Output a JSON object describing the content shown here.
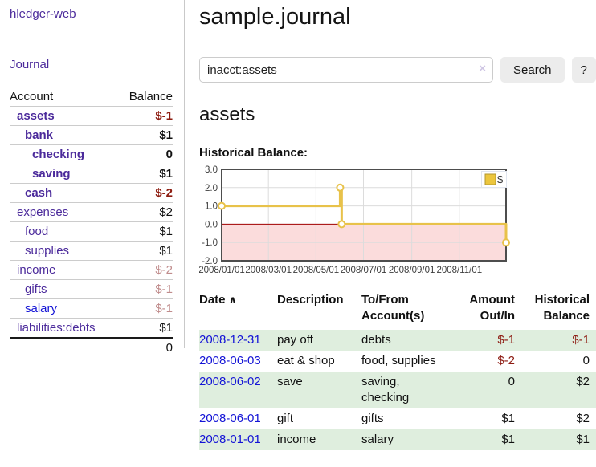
{
  "colors": {
    "link_purple": "#4b2a9b",
    "link_blue": "#1414d6",
    "negative_strong": "#8d1c10",
    "negative_soft": "#c08c8c",
    "row_stripe_green": "#dfeede",
    "button_gray": "#ececec"
  },
  "sidebar": {
    "app_title": "hledger-web",
    "journal_link": "Journal",
    "accounts": {
      "header_account": "Account",
      "header_balance": "Balance",
      "rows": [
        {
          "name": "assets",
          "balance": "$-1"
        },
        {
          "name": "bank",
          "balance": "$1"
        },
        {
          "name": "checking",
          "balance": "0"
        },
        {
          "name": "saving",
          "balance": "$1"
        },
        {
          "name": "cash",
          "balance": "$-2"
        },
        {
          "name": "expenses",
          "balance": "$2"
        },
        {
          "name": "food",
          "balance": "$1"
        },
        {
          "name": "supplies",
          "balance": "$1"
        },
        {
          "name": "income",
          "balance": "$-2"
        },
        {
          "name": "gifts",
          "balance": "$-1"
        },
        {
          "name": "salary",
          "balance": "$-1"
        },
        {
          "name": "liabilities:debts",
          "balance": "$1"
        }
      ],
      "total": "0"
    }
  },
  "main": {
    "title": "sample.journal",
    "search": {
      "value": "inacct:assets",
      "clear_icon": "×",
      "search_button": "Search",
      "help_button": "?"
    },
    "heading": "assets",
    "chart_label": "Historical Balance:"
  },
  "chart_data": {
    "type": "line",
    "step": true,
    "title": "Historical Balance:",
    "series": [
      {
        "name": "$",
        "color": "#e8c24a",
        "points": [
          {
            "date": "2008-01-01",
            "day": 0,
            "value": 1
          },
          {
            "date": "2008-06-01",
            "day": 152,
            "value": 2
          },
          {
            "date": "2008-06-03",
            "day": 154,
            "value": 0
          },
          {
            "date": "2008-12-31",
            "day": 365,
            "value": -1
          }
        ]
      }
    ],
    "x_ticks": [
      {
        "label": "2008/01/01",
        "day": 0
      },
      {
        "label": "2008/03/01",
        "day": 60
      },
      {
        "label": "2008/05/01",
        "day": 121
      },
      {
        "label": "2008/07/01",
        "day": 182
      },
      {
        "label": "2008/09/01",
        "day": 244
      },
      {
        "label": "2008/11/01",
        "day": 305
      }
    ],
    "y_ticks": [
      "3.0",
      "2.0",
      "1.0",
      "0.0",
      "-1.0",
      "-2.0"
    ],
    "ylim": [
      -2,
      3
    ],
    "xlim_days": [
      0,
      365
    ],
    "grid": true,
    "legend": {
      "label": "$",
      "swatch_color": "#ecc63e",
      "position": "top-right"
    },
    "negative_region_color": "#fbdcdc",
    "zero_line_color": "#a40000"
  },
  "register": {
    "headers": {
      "date": "Date",
      "sort_icon": "∧",
      "description": "Description",
      "accounts": "To/From Account(s)",
      "amount": "Amount Out/In",
      "balance": "Historical Balance"
    },
    "rows": [
      {
        "date": "2008-12-31",
        "description": "pay off",
        "accounts": "debts",
        "amount": "$-1",
        "balance": "$-1"
      },
      {
        "date": "2008-06-03",
        "description": "eat & shop",
        "accounts": "food, supplies",
        "amount": "$-2",
        "balance": "0"
      },
      {
        "date": "2008-06-02",
        "description": "save",
        "accounts": "saving,\nchecking",
        "amount": "0",
        "balance": "$2"
      },
      {
        "date": "2008-06-01",
        "description": "gift",
        "accounts": "gifts",
        "amount": "$1",
        "balance": "$2"
      },
      {
        "date": "2008-01-01",
        "description": "income",
        "accounts": "salary",
        "amount": "$1",
        "balance": "$1"
      }
    ]
  }
}
